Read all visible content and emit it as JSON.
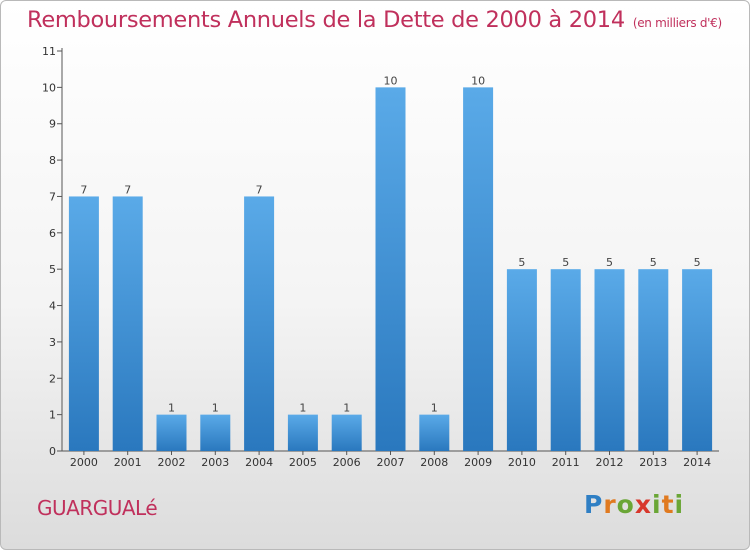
{
  "header": {
    "title": "Remboursements Annuels de la Dette de 2000 à 2014",
    "subtitle": "(en milliers d'€)"
  },
  "commune": "GUARGUALé",
  "logo": {
    "text": "Proxiti"
  },
  "colors": {
    "bar_top": "#5aaae8",
    "bar_bottom": "#2a78be",
    "title": "#c0305c"
  },
  "chart_data": {
    "type": "bar",
    "title": "Remboursements Annuels de la Dette de 2000 à 2014",
    "subtitle": "(en milliers d'€)",
    "categories": [
      "2000",
      "2001",
      "2002",
      "2003",
      "2004",
      "2005",
      "2006",
      "2007",
      "2008",
      "2009",
      "2010",
      "2011",
      "2012",
      "2013",
      "2014"
    ],
    "values": [
      7,
      7,
      1,
      1,
      7,
      1,
      1,
      10,
      1,
      10,
      5,
      5,
      5,
      5,
      5
    ],
    "ylim": [
      0,
      11
    ],
    "yticks": [
      0,
      1,
      2,
      3,
      4,
      5,
      6,
      7,
      8,
      9,
      10,
      11
    ],
    "grid": false,
    "legend": "none",
    "xlabel": "",
    "ylabel": ""
  }
}
